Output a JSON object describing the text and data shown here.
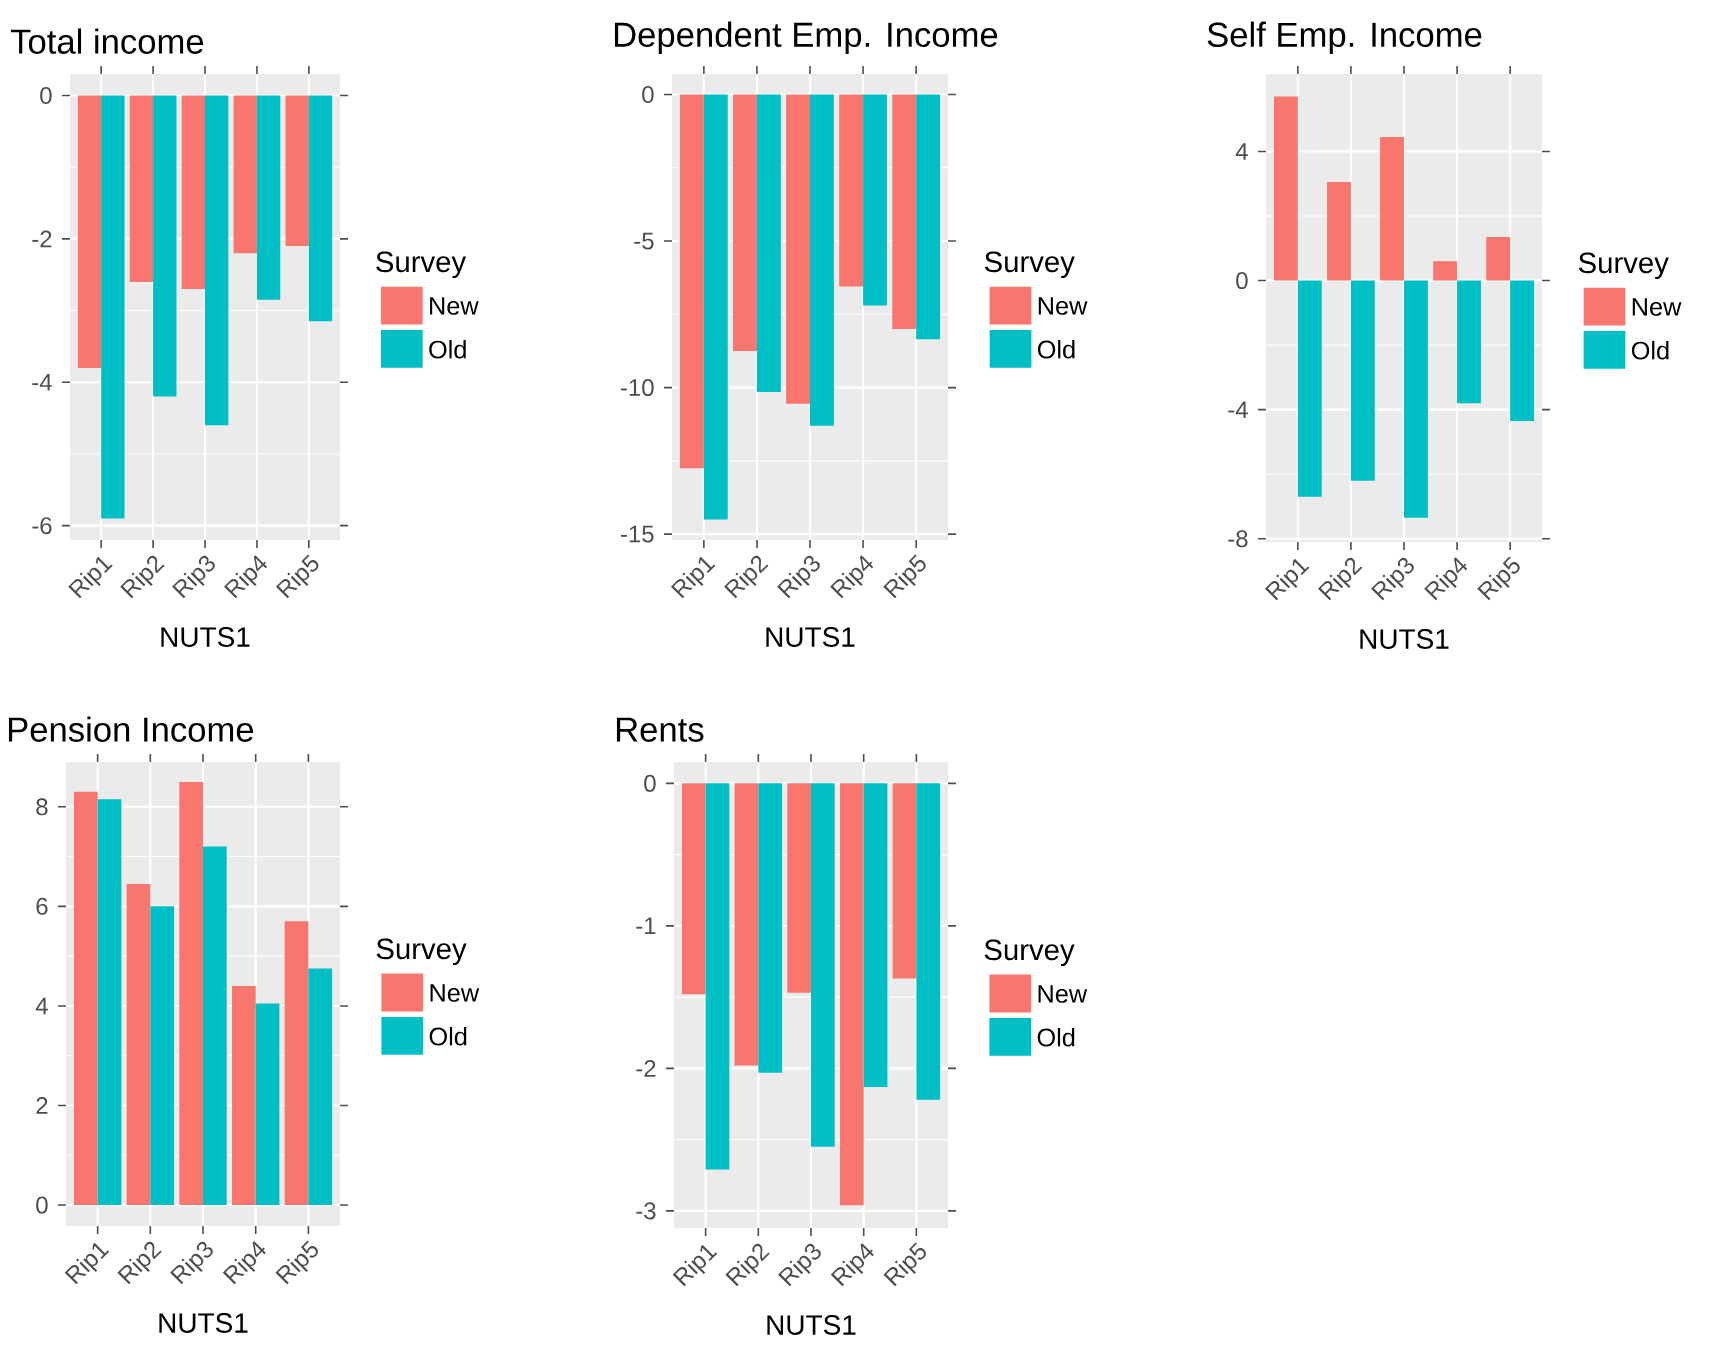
{
  "chart_data": [
    {
      "type": "bar",
      "title": "Total income",
      "xlabel": "NUTS1",
      "legend_title": "Survey",
      "legend": "right",
      "grid": true,
      "categories": [
        "Rip1",
        "Rip2",
        "Rip3",
        "Rip4",
        "Rip5"
      ],
      "series": [
        {
          "name": "New",
          "color": "#f8766d",
          "values": [
            -3.8,
            -2.6,
            -2.7,
            -2.2,
            -2.1
          ]
        },
        {
          "name": "Old",
          "color": "#00bfc4",
          "values": [
            -5.9,
            -4.2,
            -4.6,
            -2.85,
            -3.15
          ]
        }
      ],
      "ylim": [
        -6.2,
        0.3
      ],
      "yticks": [
        -6,
        -4,
        -2,
        0
      ]
    },
    {
      "type": "bar",
      "title": "Dependent Emp. Income",
      "xlabel": "NUTS1",
      "legend_title": "Survey",
      "legend": "right",
      "grid": true,
      "categories": [
        "Rip1",
        "Rip2",
        "Rip3",
        "Rip4",
        "Rip5"
      ],
      "series": [
        {
          "name": "New",
          "color": "#f8766d",
          "values": [
            -12.75,
            -8.75,
            -10.55,
            -6.55,
            -8.0
          ]
        },
        {
          "name": "Old",
          "color": "#00bfc4",
          "values": [
            -14.5,
            -10.15,
            -11.3,
            -7.2,
            -8.35
          ]
        }
      ],
      "ylim": [
        -15.2,
        0.7
      ],
      "yticks": [
        -15,
        -10,
        -5,
        0
      ]
    },
    {
      "type": "bar",
      "title": "Self Emp. Income",
      "xlabel": "NUTS1",
      "legend_title": "Survey",
      "legend": "right",
      "grid": true,
      "categories": [
        "Rip1",
        "Rip2",
        "Rip3",
        "Rip4",
        "Rip5"
      ],
      "series": [
        {
          "name": "New",
          "color": "#f8766d",
          "values": [
            5.7,
            3.05,
            4.45,
            0.6,
            1.35
          ]
        },
        {
          "name": "Old",
          "color": "#00bfc4",
          "values": [
            -6.7,
            -6.2,
            -7.35,
            -3.8,
            -4.35
          ]
        }
      ],
      "ylim": [
        -8.1,
        6.4
      ],
      "yticks": [
        -8,
        -4,
        0,
        4
      ]
    },
    {
      "type": "bar",
      "title": "Pension Income",
      "xlabel": "NUTS1",
      "legend_title": "Survey",
      "legend": "right",
      "grid": true,
      "categories": [
        "Rip1",
        "Rip2",
        "Rip3",
        "Rip4",
        "Rip5"
      ],
      "series": [
        {
          "name": "New",
          "color": "#f8766d",
          "values": [
            8.3,
            6.45,
            8.5,
            4.4,
            5.7
          ]
        },
        {
          "name": "Old",
          "color": "#00bfc4",
          "values": [
            8.15,
            6.0,
            7.2,
            4.05,
            4.75
          ]
        }
      ],
      "ylim": [
        -0.42,
        8.9
      ],
      "yticks": [
        0,
        2,
        4,
        6,
        8
      ]
    },
    {
      "type": "bar",
      "title": "Rents",
      "xlabel": "NUTS1",
      "legend_title": "Survey",
      "legend": "right",
      "grid": true,
      "categories": [
        "Rip1",
        "Rip2",
        "Rip3",
        "Rip4",
        "Rip5"
      ],
      "series": [
        {
          "name": "New",
          "color": "#f8766d",
          "values": [
            -1.48,
            -1.98,
            -1.47,
            -2.96,
            -1.37
          ]
        },
        {
          "name": "Old",
          "color": "#00bfc4",
          "values": [
            -2.71,
            -2.03,
            -2.55,
            -2.13,
            -2.22
          ]
        }
      ],
      "ylim": [
        -3.12,
        0.15
      ],
      "yticks": [
        -3,
        -2,
        -1,
        0
      ]
    }
  ]
}
